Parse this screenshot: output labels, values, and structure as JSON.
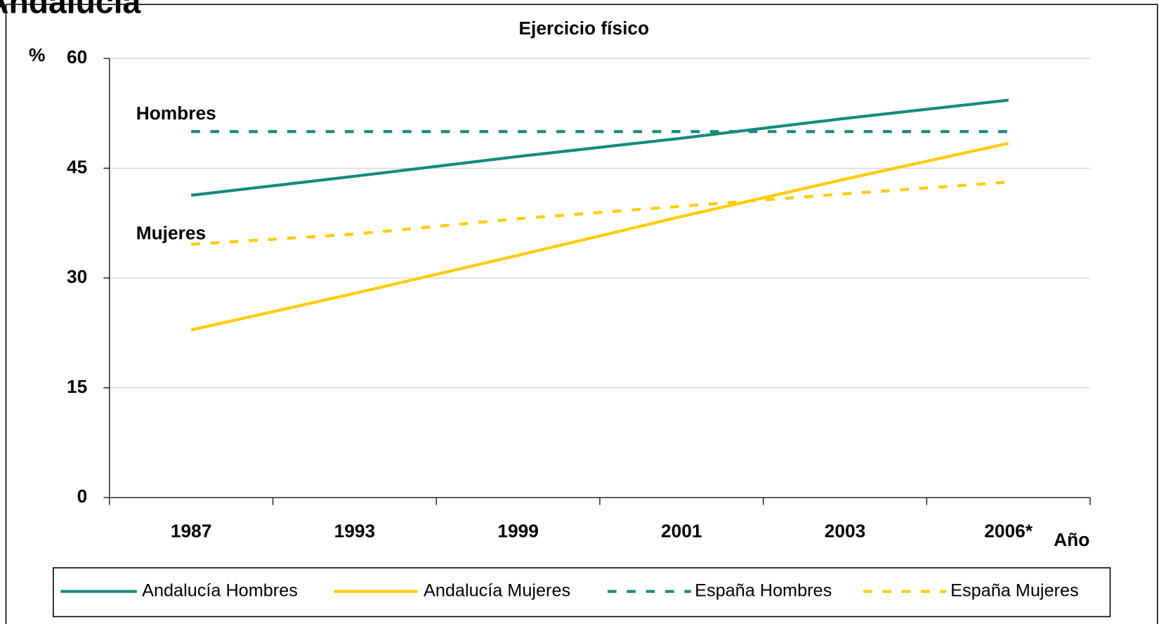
{
  "chart_data": {
    "type": "line",
    "header": "Andalucía",
    "title": "Ejercicio físico",
    "y_label": "%",
    "x_label": "Año",
    "categories": [
      "1987",
      "1993",
      "1999",
      "2001",
      "2003",
      "2006*"
    ],
    "series": [
      {
        "name": "Andalucía Hombres",
        "color": "#178a7c",
        "dashed": false,
        "values": [
          41.3,
          43.9,
          46.6,
          49.1,
          51.8,
          54.3
        ]
      },
      {
        "name": "Andalucía Mujeres",
        "color": "#ffcc00",
        "dashed": false,
        "values": [
          22.9,
          27.9,
          33.1,
          38.4,
          43.5,
          48.4
        ]
      },
      {
        "name": "España Hombres",
        "color": "#178a7c",
        "dashed": true,
        "values": [
          50,
          50,
          50,
          50,
          50,
          50
        ]
      },
      {
        "name": "España Mujeres",
        "color": "#ffcc00",
        "dashed": true,
        "values": [
          34.6,
          36.0,
          38.1,
          39.8,
          41.5,
          43.1
        ]
      }
    ],
    "annotations": [
      "Hombres",
      "Mujeres"
    ],
    "ylim": [
      0,
      60
    ],
    "yticks": [
      0,
      15,
      30,
      45,
      60
    ],
    "grid": true,
    "legend": "bottom"
  }
}
